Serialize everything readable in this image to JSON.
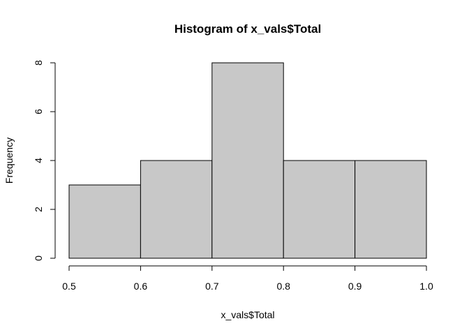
{
  "chart_data": {
    "type": "bar",
    "title": "Histogram of x_vals$Total",
    "xlabel": "x_vals$Total",
    "ylabel": "Frequency",
    "bins": [
      {
        "start": 0.5,
        "end": 0.6,
        "count": 3
      },
      {
        "start": 0.6,
        "end": 0.7,
        "count": 4
      },
      {
        "start": 0.7,
        "end": 0.8,
        "count": 8
      },
      {
        "start": 0.8,
        "end": 0.9,
        "count": 4
      },
      {
        "start": 0.9,
        "end": 1.0,
        "count": 4
      }
    ],
    "xlim": [
      0.5,
      1.0
    ],
    "ylim": [
      0,
      8
    ],
    "xticks": [
      "0.5",
      "0.6",
      "0.7",
      "0.8",
      "0.9",
      "1.0"
    ],
    "yticks": [
      "0",
      "2",
      "4",
      "6",
      "8"
    ],
    "bar_color": "#c8c8c8",
    "grid": false
  }
}
